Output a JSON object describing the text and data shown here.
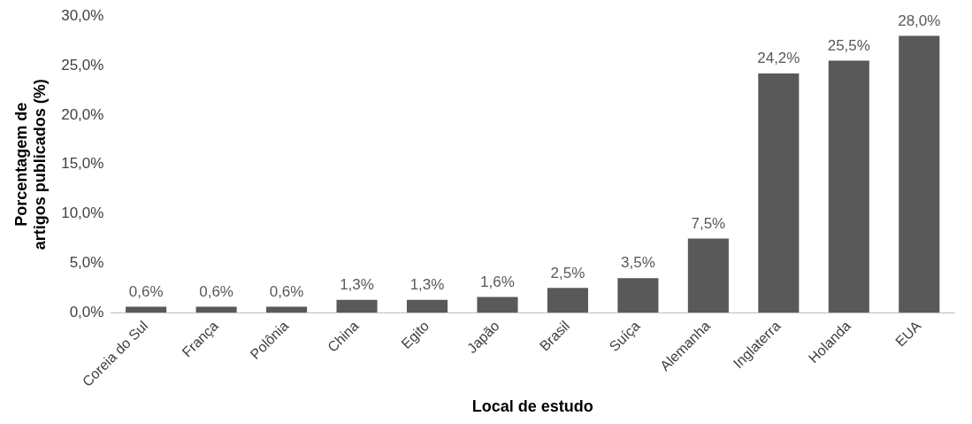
{
  "chart_data": {
    "type": "bar",
    "xlabel": "Local de estudo",
    "ylabel": "Porcentagem de artigos publicados (%)",
    "categories": [
      "Coreia do Sul",
      "França",
      "Polônia",
      "China",
      "Egito",
      "Japão",
      "Brasil",
      "Suíça",
      "Alemanha",
      "Inglaterra",
      "Holanda",
      "EUA"
    ],
    "values": [
      0.6,
      0.6,
      0.6,
      1.3,
      1.3,
      1.6,
      2.5,
      3.5,
      7.5,
      24.2,
      25.5,
      28.0
    ],
    "value_labels": [
      "0,6%",
      "0,6%",
      "0,6%",
      "1,3%",
      "1,3%",
      "1,6%",
      "2,5%",
      "3,5%",
      "7,5%",
      "24,2%",
      "25,5%",
      "28,0%"
    ],
    "color": "#595959",
    "ylim": [
      0,
      30
    ],
    "yticks": [
      {
        "value": 0,
        "label": "0,0%"
      },
      {
        "value": 5,
        "label": "5,0%"
      },
      {
        "value": 10,
        "label": "10,0%"
      },
      {
        "value": 15,
        "label": "15,0%"
      },
      {
        "value": 20,
        "label": "20,0%"
      },
      {
        "value": 25,
        "label": "25,0%"
      },
      {
        "value": 30,
        "label": "30,0%"
      }
    ],
    "grid": false,
    "legend": false
  }
}
